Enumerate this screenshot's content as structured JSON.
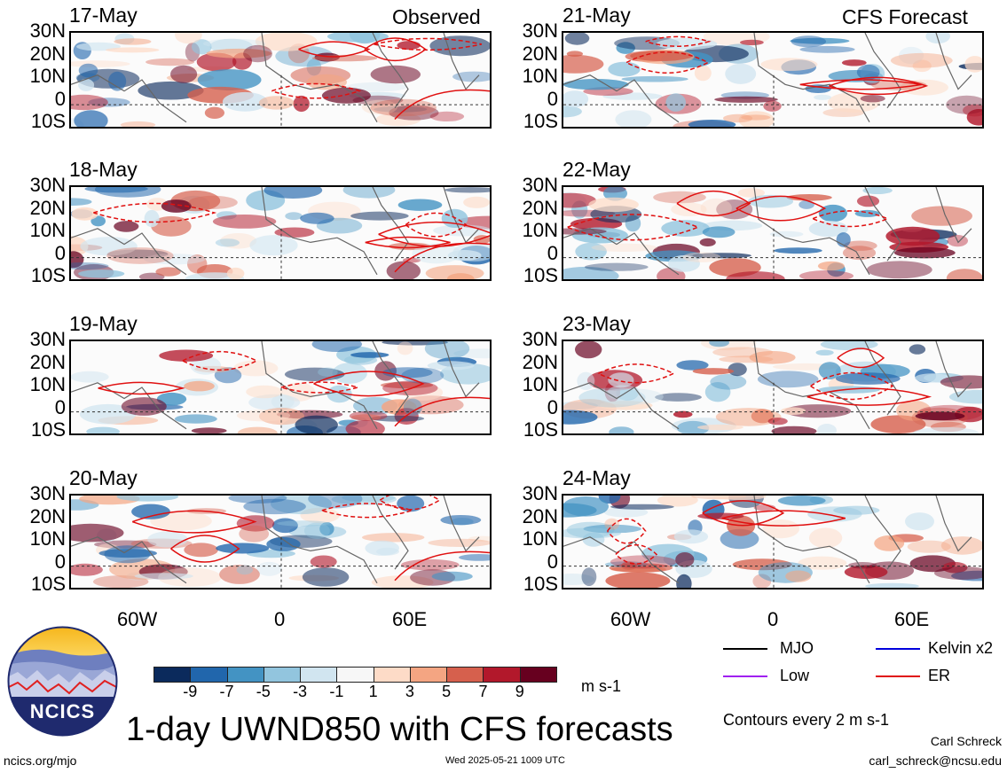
{
  "panels": {
    "observed_label": "Observed",
    "forecast_label": "CFS Forecast",
    "left_dates": [
      "17-May",
      "18-May",
      "19-May",
      "20-May"
    ],
    "right_dates": [
      "21-May",
      "22-May",
      "23-May",
      "24-May"
    ],
    "lat_labels": [
      "30N",
      "20N",
      "10N",
      "0",
      "10S"
    ],
    "lon_labels": [
      "60W",
      "0",
      "60E"
    ]
  },
  "colorbar": {
    "labels": [
      "-9",
      "-7",
      "-5",
      "-3",
      "-1",
      "1",
      "3",
      "5",
      "7",
      "9"
    ],
    "unit": "m s-1",
    "colors": [
      "#0b2a5c",
      "#2166ac",
      "#4393c3",
      "#92c5de",
      "#d1e5f0",
      "#f7f7f7",
      "#fddbc7",
      "#f4a582",
      "#d6604d",
      "#b2182b",
      "#67001f"
    ]
  },
  "legend": {
    "items": [
      {
        "label": "MJO",
        "color": "#000000"
      },
      {
        "label": "Kelvin x2",
        "color": "#0000dd"
      },
      {
        "label": "Low",
        "color": "#a020f0"
      },
      {
        "label": "ER",
        "color": "#e01010"
      }
    ],
    "contour_note": "Contours every 2 m s-1"
  },
  "title": "1-day UWND850 with CFS forecasts",
  "logo_text": "NCICS",
  "footer": {
    "url": "ncics.org/mjo",
    "timestamp": "Wed 2025-05-21 1009 UTC",
    "author": "Carl Schreck",
    "email": "carl_schreck@ncsu.edu"
  }
}
